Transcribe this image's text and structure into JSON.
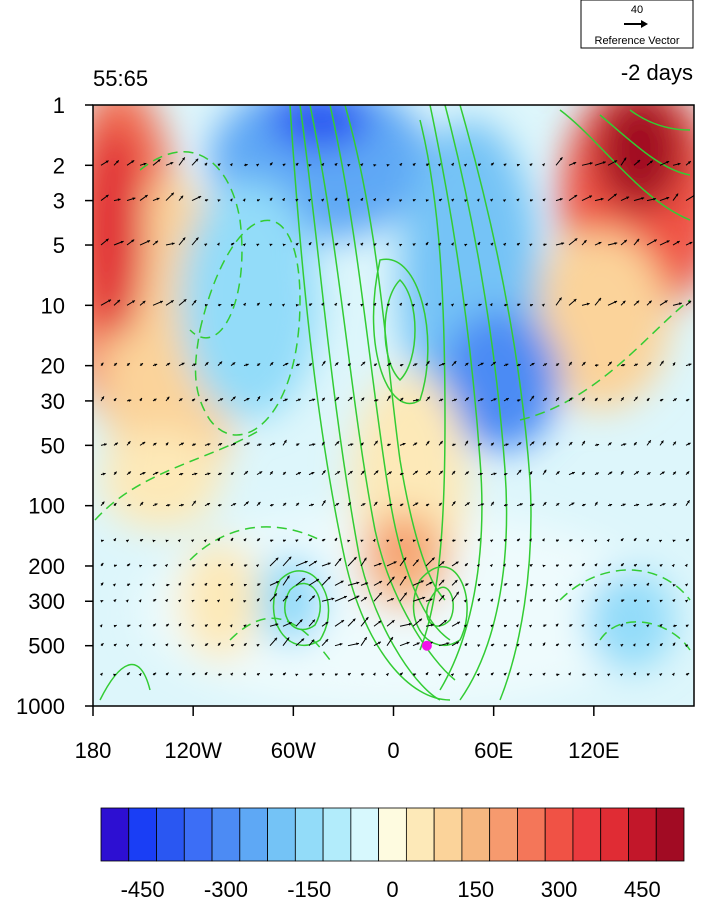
{
  "chart_data": {
    "type": "heatmap",
    "title_left": "55:65",
    "title_right": "-2 days",
    "x_ticks": [
      "180",
      "120W",
      "60W",
      "0",
      "60E",
      "120E"
    ],
    "x_tick_lon": [
      -180,
      -120,
      -60,
      0,
      60,
      120
    ],
    "x_range_lon": [
      -180,
      180
    ],
    "y_scale": "log",
    "y_ticks": [
      1,
      2,
      3,
      5,
      10,
      20,
      30,
      50,
      100,
      200,
      300,
      500,
      1000
    ],
    "y_range": [
      1,
      1000
    ],
    "reference_vector": {
      "value": "40",
      "label": "Reference Vector"
    },
    "colorbar": {
      "levels": [
        -525,
        -475,
        -425,
        -375,
        -325,
        -275,
        -225,
        -175,
        -125,
        -75,
        -25,
        25,
        75,
        125,
        175,
        225,
        275,
        325,
        375,
        425,
        475,
        525
      ],
      "colors": [
        "#2d0fd2",
        "#1a3ef5",
        "#2a57f2",
        "#3c6ef6",
        "#4c8bf4",
        "#5ea8f5",
        "#74c3f6",
        "#93dcf9",
        "#b2ecfb",
        "#d7f8fd",
        "#fefbe0",
        "#fde9b8",
        "#fbd39a",
        "#f6b780",
        "#f69a6e",
        "#f47659",
        "#f05245",
        "#ea3a3e",
        "#e02c34",
        "#c2172a",
        "#a10b23"
      ],
      "tick_labels": [
        "-450",
        "-300",
        "-150",
        "0",
        "150",
        "300",
        "450"
      ],
      "tick_values": [
        -450,
        -300,
        -150,
        0,
        150,
        300,
        450
      ]
    },
    "marker": {
      "lon": 20,
      "level": 500,
      "color": "#f211e8"
    },
    "contour_color": "#33cc33"
  }
}
